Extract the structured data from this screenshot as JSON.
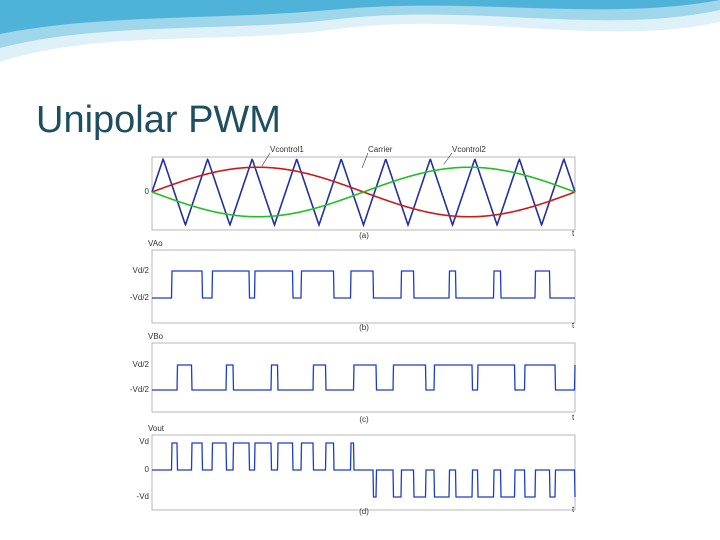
{
  "title": "Unipolar PWM",
  "panels": [
    {
      "labels": [
        "Vcontrol1",
        "Carrier",
        "Vcontrol2"
      ],
      "levels": [
        "0"
      ],
      "caption": "(a)",
      "axis": "t"
    },
    {
      "name": "VAo",
      "levels": [
        "Vd/2",
        "-Vd/2"
      ],
      "caption": "(b)",
      "axis": "t"
    },
    {
      "name": "VBo",
      "levels": [
        "Vd/2",
        "-Vd/2"
      ],
      "caption": "(c)",
      "axis": "t"
    },
    {
      "name": "Vout",
      "levels": [
        "Vd",
        "0",
        "-Vd"
      ],
      "caption": "(d)",
      "axis": "t"
    }
  ]
}
